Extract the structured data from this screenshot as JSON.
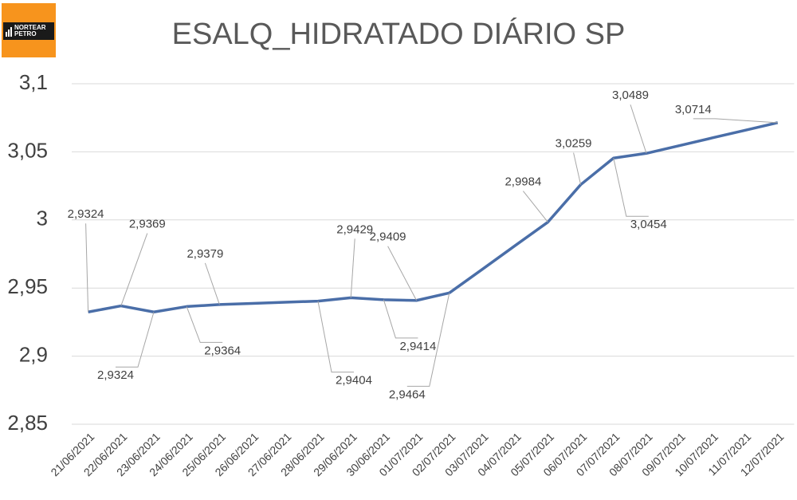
{
  "logo": [
    "NORTEAR",
    "PETRO"
  ],
  "chart_data": {
    "type": "line",
    "title": "ESALQ_HIDRATADO DIÁRIO SP",
    "categories": [
      "21/06/2021",
      "22/06/2021",
      "23/06/2021",
      "24/06/2021",
      "25/06/2021",
      "26/06/2021",
      "27/06/2021",
      "28/06/2021",
      "29/06/2021",
      "30/06/2021",
      "01/07/2021",
      "02/07/2021",
      "03/07/2021",
      "04/07/2021",
      "05/07/2021",
      "06/07/2021",
      "07/07/2021",
      "08/07/2021",
      "09/07/2021",
      "10/07/2021",
      "11/07/2021",
      "12/07/2021"
    ],
    "series": [
      {
        "name": "ESALQ_HIDRATADO DIÁRIO SP",
        "color": "#4a6ea8",
        "values": [
          2.9324,
          2.9369,
          2.9324,
          2.9364,
          2.9379,
          2.9387,
          2.9396,
          2.9404,
          2.9429,
          2.9414,
          2.9409,
          2.9464,
          2.9637,
          2.9811,
          2.9984,
          3.0259,
          3.0454,
          3.0489,
          3.0545,
          3.0602,
          3.0658,
          3.0714
        ],
        "value_labels": [
          "2,9324",
          "2,9369",
          "2,9324",
          "2,9364",
          "2,9379",
          null,
          null,
          "2,9404",
          "2,9429",
          "2,9414",
          "2,9409",
          "2,9464",
          null,
          null,
          "2,9984",
          "3,0259",
          "3,0454",
          "3,0489",
          null,
          null,
          null,
          "3,0714"
        ]
      }
    ],
    "ylim": [
      2.85,
      3.1
    ],
    "yticks": [
      {
        "value": 2.85,
        "label": "2,85"
      },
      {
        "value": 2.9,
        "label": "2,9"
      },
      {
        "value": 2.95,
        "label": "2,95"
      },
      3,
      {
        "value": 3.05,
        "label": "3,05"
      },
      {
        "value": 3.1,
        "label": "3,1"
      }
    ],
    "grid": true
  }
}
